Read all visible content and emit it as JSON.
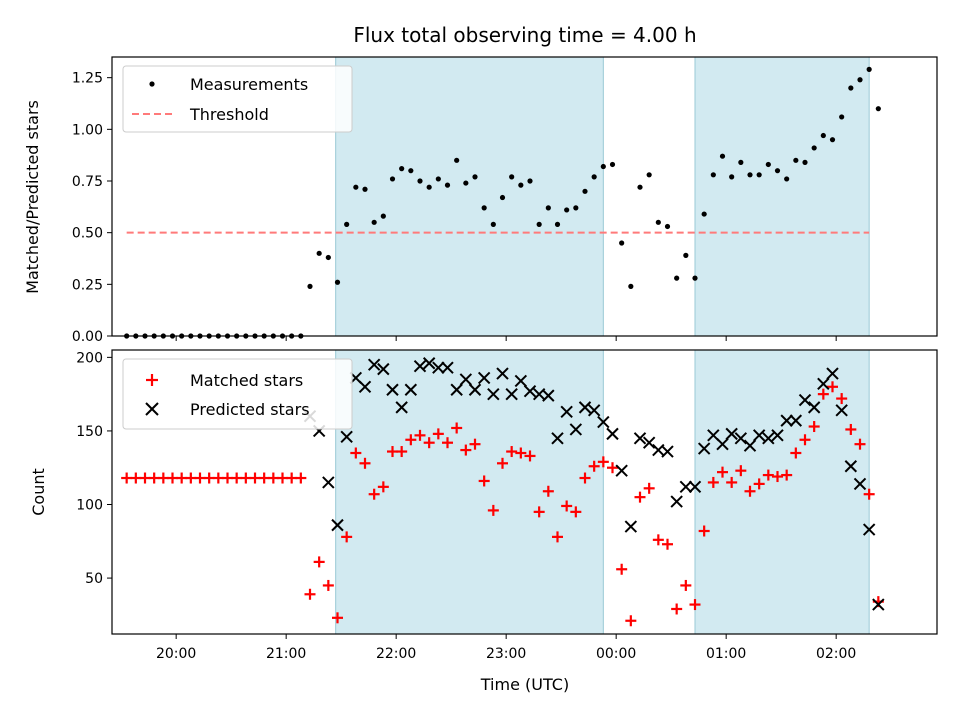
{
  "chart_data": [
    {
      "type": "scatter",
      "title": "Flux total observing time = 4.00 h",
      "xlabel": "",
      "ylabel": "Matched/Predicted stars",
      "ylim": [
        0,
        1.35
      ],
      "yticks": [
        "0.00",
        "0.25",
        "0.50",
        "0.75",
        "1.00",
        "1.25"
      ],
      "ytick_values": [
        0,
        0.25,
        0.5,
        0.75,
        1.0,
        1.25
      ],
      "xlim": [
        "19:25",
        "02:55"
      ],
      "legend_position": "upper-left",
      "shaded_spans": [
        [
          "21:27",
          "23:53"
        ],
        [
          "00:43",
          "02:18"
        ]
      ],
      "threshold": {
        "name": "Threshold",
        "y": 0.5,
        "x_range": [
          "19:33",
          "02:18"
        ],
        "color": "#ff7a7a"
      },
      "series": [
        {
          "name": "Measurements",
          "marker": "dot",
          "color": "#000000",
          "points": [
            [
              "19:33",
              0.0
            ],
            [
              "19:38",
              0.0
            ],
            [
              "19:43",
              0.0
            ],
            [
              "19:48",
              0.0
            ],
            [
              "19:53",
              0.0
            ],
            [
              "19:58",
              0.0
            ],
            [
              "20:03",
              0.0
            ],
            [
              "20:08",
              0.0
            ],
            [
              "20:13",
              0.0
            ],
            [
              "20:18",
              0.0
            ],
            [
              "20:23",
              0.0
            ],
            [
              "20:28",
              0.0
            ],
            [
              "20:33",
              0.0
            ],
            [
              "20:38",
              0.0
            ],
            [
              "20:43",
              0.0
            ],
            [
              "20:48",
              0.0
            ],
            [
              "20:53",
              0.0
            ],
            [
              "20:58",
              0.0
            ],
            [
              "21:03",
              0.0
            ],
            [
              "21:08",
              0.0
            ],
            [
              "21:13",
              0.24
            ],
            [
              "21:18",
              0.4
            ],
            [
              "21:23",
              0.38
            ],
            [
              "21:28",
              0.26
            ],
            [
              "21:33",
              0.54
            ],
            [
              "21:38",
              0.72
            ],
            [
              "21:43",
              0.71
            ],
            [
              "21:48",
              0.55
            ],
            [
              "21:53",
              0.58
            ],
            [
              "21:58",
              0.76
            ],
            [
              "22:03",
              0.81
            ],
            [
              "22:08",
              0.8
            ],
            [
              "22:13",
              0.75
            ],
            [
              "22:18",
              0.72
            ],
            [
              "22:23",
              0.76
            ],
            [
              "22:28",
              0.73
            ],
            [
              "22:33",
              0.85
            ],
            [
              "22:38",
              0.74
            ],
            [
              "22:43",
              0.77
            ],
            [
              "22:48",
              0.62
            ],
            [
              "22:53",
              0.54
            ],
            [
              "22:58",
              0.67
            ],
            [
              "23:03",
              0.77
            ],
            [
              "23:08",
              0.73
            ],
            [
              "23:13",
              0.75
            ],
            [
              "23:18",
              0.54
            ],
            [
              "23:23",
              0.62
            ],
            [
              "23:28",
              0.54
            ],
            [
              "23:33",
              0.61
            ],
            [
              "23:38",
              0.62
            ],
            [
              "23:43",
              0.7
            ],
            [
              "23:48",
              0.77
            ],
            [
              "23:53",
              0.82
            ],
            [
              "23:58",
              0.83
            ],
            [
              "00:03",
              0.45
            ],
            [
              "00:08",
              0.24
            ],
            [
              "00:13",
              0.72
            ],
            [
              "00:18",
              0.78
            ],
            [
              "00:23",
              0.55
            ],
            [
              "00:28",
              0.53
            ],
            [
              "00:33",
              0.28
            ],
            [
              "00:38",
              0.39
            ],
            [
              "00:43",
              0.28
            ],
            [
              "00:48",
              0.59
            ],
            [
              "00:53",
              0.78
            ],
            [
              "00:58",
              0.87
            ],
            [
              "01:03",
              0.77
            ],
            [
              "01:08",
              0.84
            ],
            [
              "01:13",
              0.78
            ],
            [
              "01:18",
              0.78
            ],
            [
              "01:23",
              0.83
            ],
            [
              "01:28",
              0.8
            ],
            [
              "01:33",
              0.76
            ],
            [
              "01:38",
              0.85
            ],
            [
              "01:43",
              0.84
            ],
            [
              "01:48",
              0.91
            ],
            [
              "01:53",
              0.97
            ],
            [
              "01:58",
              0.95
            ],
            [
              "02:03",
              1.06
            ],
            [
              "02:08",
              1.2
            ],
            [
              "02:13",
              1.24
            ],
            [
              "02:18",
              1.29
            ],
            [
              "02:23",
              1.1
            ]
          ]
        }
      ]
    },
    {
      "type": "scatter",
      "title": "",
      "xlabel": "Time (UTC)",
      "ylabel": "Count",
      "ylim": [
        12,
        205
      ],
      "yticks": [
        "50",
        "100",
        "150",
        "200"
      ],
      "ytick_values": [
        50,
        100,
        150,
        200
      ],
      "xlim": [
        "19:25",
        "02:55"
      ],
      "xticks": [
        "20:00",
        "21:00",
        "22:00",
        "23:00",
        "00:00",
        "01:00",
        "02:00"
      ],
      "legend_position": "upper-left",
      "shaded_spans": [
        [
          "21:27",
          "23:53"
        ],
        [
          "00:43",
          "02:18"
        ]
      ],
      "series": [
        {
          "name": "Matched stars",
          "marker": "plus",
          "color": "#ff0000",
          "points": [
            [
              "19:33",
              118
            ],
            [
              "19:38",
              118
            ],
            [
              "19:43",
              118
            ],
            [
              "19:48",
              118
            ],
            [
              "19:53",
              118
            ],
            [
              "19:58",
              118
            ],
            [
              "20:03",
              118
            ],
            [
              "20:08",
              118
            ],
            [
              "20:13",
              118
            ],
            [
              "20:18",
              118
            ],
            [
              "20:23",
              118
            ],
            [
              "20:28",
              118
            ],
            [
              "20:33",
              118
            ],
            [
              "20:38",
              118
            ],
            [
              "20:43",
              118
            ],
            [
              "20:48",
              118
            ],
            [
              "20:53",
              118
            ],
            [
              "20:58",
              118
            ],
            [
              "21:03",
              118
            ],
            [
              "21:08",
              118
            ],
            [
              "21:13",
              39
            ],
            [
              "21:18",
              61
            ],
            [
              "21:23",
              45
            ],
            [
              "21:28",
              23
            ],
            [
              "21:33",
              78
            ],
            [
              "21:38",
              135
            ],
            [
              "21:43",
              128
            ],
            [
              "21:48",
              107
            ],
            [
              "21:53",
              112
            ],
            [
              "21:58",
              136
            ],
            [
              "22:03",
              136
            ],
            [
              "22:08",
              144
            ],
            [
              "22:13",
              147
            ],
            [
              "22:18",
              142
            ],
            [
              "22:23",
              148
            ],
            [
              "22:28",
              142
            ],
            [
              "22:33",
              152
            ],
            [
              "22:38",
              137
            ],
            [
              "22:43",
              141
            ],
            [
              "22:48",
              116
            ],
            [
              "22:53",
              96
            ],
            [
              "22:58",
              128
            ],
            [
              "23:03",
              136
            ],
            [
              "23:08",
              135
            ],
            [
              "23:13",
              133
            ],
            [
              "23:18",
              95
            ],
            [
              "23:23",
              109
            ],
            [
              "23:28",
              78
            ],
            [
              "23:33",
              99
            ],
            [
              "23:38",
              95
            ],
            [
              "23:43",
              118
            ],
            [
              "23:48",
              126
            ],
            [
              "23:53",
              129
            ],
            [
              "23:58",
              125
            ],
            [
              "00:03",
              56
            ],
            [
              "00:08",
              21
            ],
            [
              "00:13",
              105
            ],
            [
              "00:18",
              111
            ],
            [
              "00:23",
              76
            ],
            [
              "00:28",
              73
            ],
            [
              "00:33",
              29
            ],
            [
              "00:38",
              45
            ],
            [
              "00:43",
              32
            ],
            [
              "00:48",
              82
            ],
            [
              "00:53",
              115
            ],
            [
              "00:58",
              122
            ],
            [
              "01:03",
              115
            ],
            [
              "01:08",
              123
            ],
            [
              "01:13",
              109
            ],
            [
              "01:18",
              114
            ],
            [
              "01:23",
              120
            ],
            [
              "01:28",
              119
            ],
            [
              "01:33",
              120
            ],
            [
              "01:38",
              135
            ],
            [
              "01:43",
              144
            ],
            [
              "01:48",
              153
            ],
            [
              "01:53",
              175
            ],
            [
              "01:58",
              180
            ],
            [
              "02:03",
              172
            ],
            [
              "02:08",
              151
            ],
            [
              "02:13",
              141
            ],
            [
              "02:18",
              107
            ],
            [
              "02:23",
              34
            ]
          ]
        },
        {
          "name": "Predicted stars",
          "marker": "x",
          "color": "#000000",
          "points": [
            [
              "21:13",
              160
            ],
            [
              "21:18",
              150
            ],
            [
              "21:23",
              115
            ],
            [
              "21:28",
              86
            ],
            [
              "21:33",
              146
            ],
            [
              "21:38",
              186
            ],
            [
              "21:43",
              180
            ],
            [
              "21:48",
              195
            ],
            [
              "21:53",
              192
            ],
            [
              "21:58",
              178
            ],
            [
              "22:03",
              166
            ],
            [
              "22:08",
              178
            ],
            [
              "22:13",
              194
            ],
            [
              "22:18",
              196
            ],
            [
              "22:23",
              193
            ],
            [
              "22:28",
              193
            ],
            [
              "22:33",
              178
            ],
            [
              "22:38",
              185
            ],
            [
              "22:43",
              178
            ],
            [
              "22:48",
              186
            ],
            [
              "22:53",
              175
            ],
            [
              "22:58",
              189
            ],
            [
              "23:03",
              175
            ],
            [
              "23:08",
              184
            ],
            [
              "23:13",
              177
            ],
            [
              "23:18",
              175
            ],
            [
              "23:23",
              174
            ],
            [
              "23:28",
              145
            ],
            [
              "23:33",
              163
            ],
            [
              "23:38",
              151
            ],
            [
              "23:43",
              166
            ],
            [
              "23:48",
              164
            ],
            [
              "23:53",
              156
            ],
            [
              "23:58",
              148
            ],
            [
              "00:03",
              123
            ],
            [
              "00:08",
              85
            ],
            [
              "00:13",
              145
            ],
            [
              "00:18",
              142
            ],
            [
              "00:23",
              137
            ],
            [
              "00:28",
              136
            ],
            [
              "00:33",
              102
            ],
            [
              "00:38",
              112
            ],
            [
              "00:43",
              112
            ],
            [
              "00:48",
              138
            ],
            [
              "00:53",
              147
            ],
            [
              "00:58",
              141
            ],
            [
              "01:03",
              148
            ],
            [
              "01:08",
              145
            ],
            [
              "01:13",
              140
            ],
            [
              "01:18",
              147
            ],
            [
              "01:23",
              145
            ],
            [
              "01:28",
              147
            ],
            [
              "01:33",
              157
            ],
            [
              "01:38",
              157
            ],
            [
              "01:43",
              171
            ],
            [
              "01:48",
              166
            ],
            [
              "01:53",
              182
            ],
            [
              "01:58",
              189
            ],
            [
              "02:03",
              164
            ],
            [
              "02:08",
              126
            ],
            [
              "02:13",
              114
            ],
            [
              "02:18",
              83
            ],
            [
              "02:23",
              32
            ]
          ]
        }
      ]
    }
  ],
  "colors": {
    "shade": "#add8e6",
    "shade_border": "#9ac9d6",
    "matched": "#ff0000",
    "threshold": "#ff7a7a"
  }
}
